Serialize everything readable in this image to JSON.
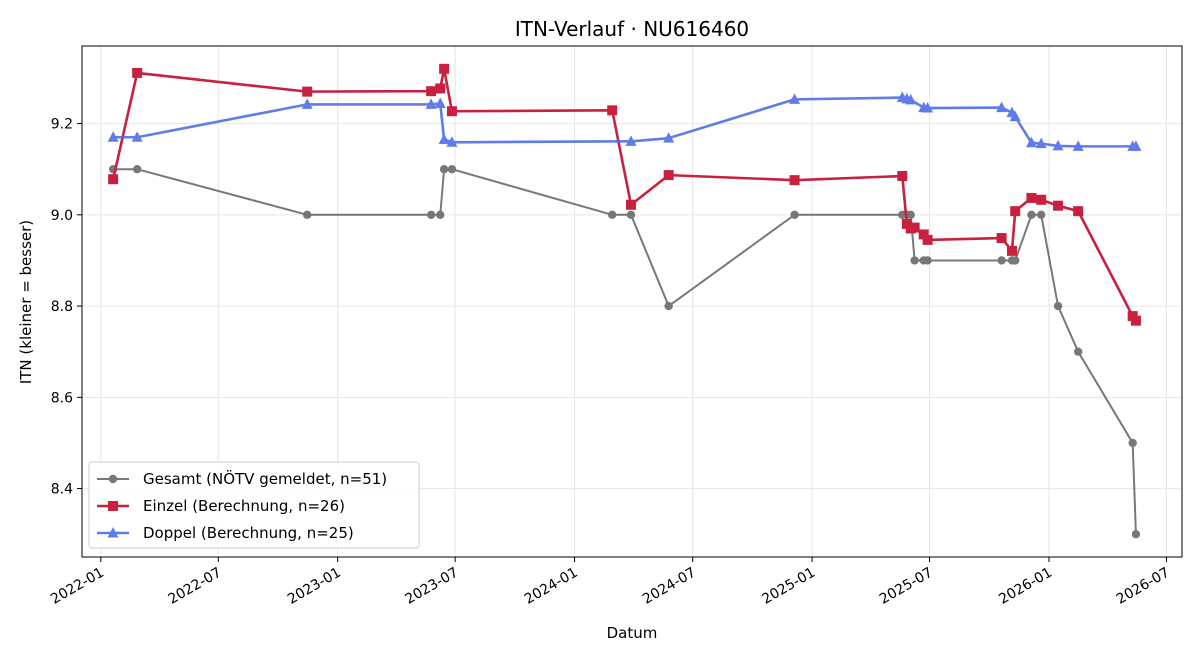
{
  "chart_data": {
    "type": "line",
    "title": "ITN-Verlauf · NU616460",
    "xlabel": "Datum",
    "ylabel": "ITN  (kleiner = besser)",
    "xlim": [
      "2021-12-03",
      "2026-07-25"
    ],
    "ylim": [
      8.25,
      9.37
    ],
    "x_ticks": [
      "2022-01-01",
      "2022-07-01",
      "2023-01-01",
      "2023-07-01",
      "2024-01-01",
      "2024-07-01",
      "2025-01-01",
      "2025-07-01",
      "2026-01-01",
      "2026-07-01"
    ],
    "x_tick_labels": [
      "2022-01",
      "2022-07",
      "2023-01",
      "2023-07",
      "2024-01",
      "2024-07",
      "2025-01",
      "2025-07",
      "2026-01",
      "2026-07"
    ],
    "y_ticks": [
      8.4,
      8.6,
      8.8,
      9.0,
      9.2
    ],
    "y_tick_labels": [
      "8.4",
      "8.6",
      "8.8",
      "9.0",
      "9.2"
    ],
    "grid": true,
    "legend_position": "lower-left",
    "series": [
      {
        "name": "Gesamt (NÖTV gemeldet, n=51)",
        "color": "#404040",
        "marker": "circle",
        "points": [
          [
            "2022-01-20",
            9.1
          ],
          [
            "2022-02-26",
            9.1
          ],
          [
            "2022-11-15",
            9.0
          ],
          [
            "2023-05-25",
            9.0
          ],
          [
            "2023-06-08",
            9.0
          ],
          [
            "2023-06-14",
            9.1
          ],
          [
            "2023-06-26",
            9.1
          ],
          [
            "2024-02-28",
            9.0
          ],
          [
            "2024-03-28",
            9.0
          ],
          [
            "2024-05-25",
            8.8
          ],
          [
            "2024-12-05",
            9.0
          ],
          [
            "2025-05-20",
            9.0
          ],
          [
            "2025-05-27",
            9.0
          ],
          [
            "2025-06-02",
            9.0
          ],
          [
            "2025-06-08",
            8.9
          ],
          [
            "2025-06-22",
            8.9
          ],
          [
            "2025-06-28",
            8.9
          ],
          [
            "2025-10-20",
            8.9
          ],
          [
            "2025-11-05",
            8.9
          ],
          [
            "2025-11-10",
            8.9
          ],
          [
            "2025-12-05",
            9.0
          ],
          [
            "2025-12-20",
            9.0
          ],
          [
            "2026-01-15",
            8.8
          ],
          [
            "2026-02-15",
            8.7
          ],
          [
            "2026-05-10",
            8.5
          ],
          [
            "2026-05-15",
            8.3
          ]
        ]
      },
      {
        "name": "Einzel (Berechnung, n=26)",
        "color": "#c8203e",
        "marker": "square",
        "points": [
          [
            "2022-01-20",
            9.078
          ],
          [
            "2022-02-26",
            9.311
          ],
          [
            "2022-11-15",
            9.27
          ],
          [
            "2023-05-25",
            9.271
          ],
          [
            "2023-06-08",
            9.277
          ],
          [
            "2023-06-14",
            9.32
          ],
          [
            "2023-06-26",
            9.227
          ],
          [
            "2024-02-28",
            9.229
          ],
          [
            "2024-03-28",
            9.022
          ],
          [
            "2024-05-25",
            9.087
          ],
          [
            "2024-12-05",
            9.076
          ],
          [
            "2025-05-20",
            9.085
          ],
          [
            "2025-05-27",
            8.98
          ],
          [
            "2025-06-02",
            8.97
          ],
          [
            "2025-06-08",
            8.972
          ],
          [
            "2025-06-22",
            8.957
          ],
          [
            "2025-06-28",
            8.945
          ],
          [
            "2025-10-20",
            8.949
          ],
          [
            "2025-11-05",
            8.921
          ],
          [
            "2025-11-10",
            9.008
          ],
          [
            "2025-12-05",
            9.037
          ],
          [
            "2025-12-20",
            9.033
          ],
          [
            "2026-01-15",
            9.02
          ],
          [
            "2026-02-15",
            9.008
          ],
          [
            "2026-05-10",
            8.778
          ],
          [
            "2026-05-15",
            8.768
          ]
        ]
      },
      {
        "name": "Doppel (Berechnung, n=25)",
        "color": "#4f6ee8",
        "marker": "triangle",
        "points": [
          [
            "2022-01-20",
            9.17
          ],
          [
            "2022-02-26",
            9.17
          ],
          [
            "2022-11-15",
            9.242
          ],
          [
            "2023-05-25",
            9.242
          ],
          [
            "2023-06-08",
            9.244
          ],
          [
            "2023-06-14",
            9.165
          ],
          [
            "2023-06-26",
            9.159
          ],
          [
            "2024-03-28",
            9.161
          ],
          [
            "2024-05-25",
            9.168
          ],
          [
            "2024-12-05",
            9.253
          ],
          [
            "2025-05-20",
            9.257
          ],
          [
            "2025-05-27",
            9.254
          ],
          [
            "2025-06-02",
            9.252
          ],
          [
            "2025-06-22",
            9.235
          ],
          [
            "2025-06-28",
            9.234
          ],
          [
            "2025-10-20",
            9.235
          ],
          [
            "2025-11-05",
            9.224
          ],
          [
            "2025-11-10",
            9.215
          ],
          [
            "2025-12-05",
            9.158
          ],
          [
            "2025-12-20",
            9.156
          ],
          [
            "2026-01-15",
            9.151
          ],
          [
            "2026-02-15",
            9.15
          ],
          [
            "2026-05-10",
            9.15
          ],
          [
            "2026-05-15",
            9.15
          ]
        ]
      }
    ]
  }
}
